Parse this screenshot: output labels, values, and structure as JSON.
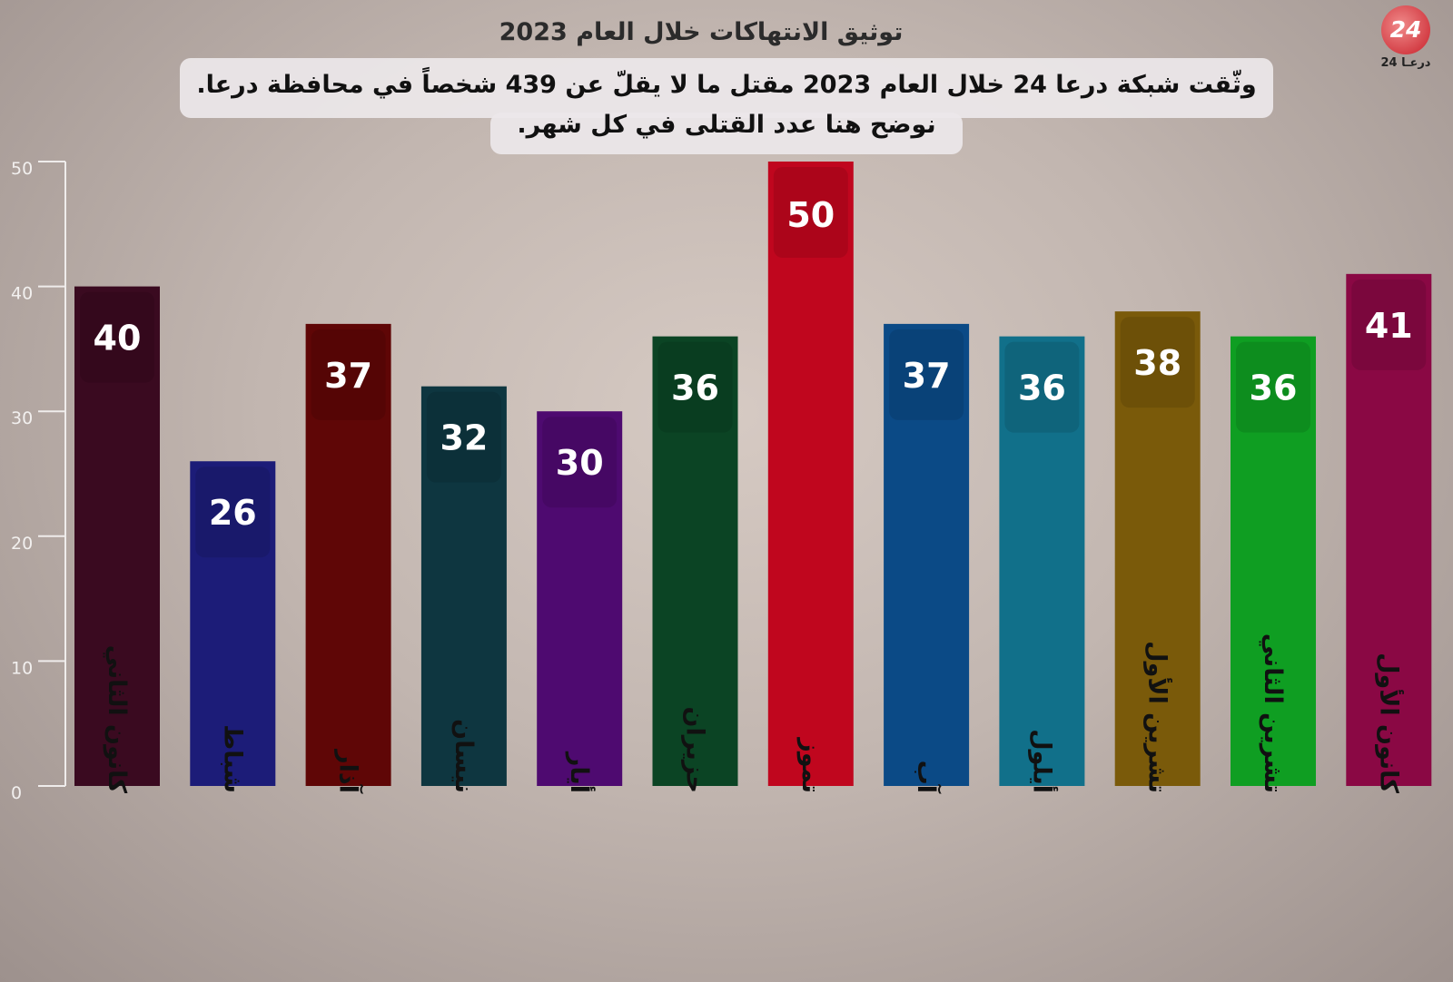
{
  "title": "توثيق الانتهاكات خلال العام 2023",
  "subtitle_lines": [
    "وثّقت شبكة درعا 24 خلال العام 2023 مقتل ما لا يقلّ عن 439 شخصاً في محافظة درعا.",
    "نوضح هنا عدد القتلى في كل شهر."
  ],
  "logo": {
    "mark": "24",
    "text": "درعـا 24"
  },
  "chart_data": {
    "type": "bar",
    "categories": [
      "كانون الثاني",
      "شباط",
      "آذار",
      "نيسان",
      "أيار",
      "حزيران",
      "تموز",
      "آب",
      "أيلول",
      "تشرين الأول",
      "تشرين الثاني",
      "كانون الأول"
    ],
    "values": [
      40,
      26,
      37,
      32,
      30,
      36,
      50,
      37,
      36,
      38,
      36,
      41
    ],
    "colors": [
      "#3a0a20",
      "#1c1c78",
      "#5f0606",
      "#0e3640",
      "#4e0a70",
      "#0b4424",
      "#c0061e",
      "#0b4a86",
      "#11708a",
      "#7a5a0a",
      "#0f9e22",
      "#8a0844"
    ],
    "yticks": [
      0,
      10,
      20,
      30,
      40,
      50
    ],
    "ylim": [
      0,
      50
    ],
    "grid": false
  }
}
